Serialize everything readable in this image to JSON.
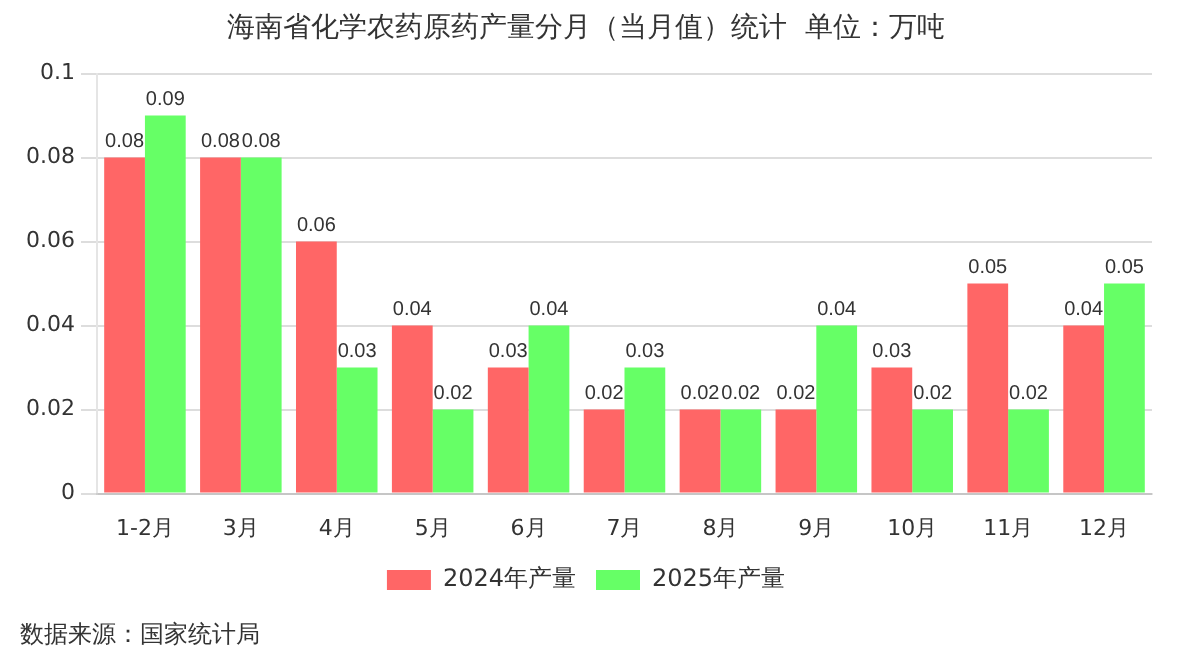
{
  "chart_data": {
    "type": "bar",
    "title": "海南省化学农药原药产量分月（当月值）统计  单位：万吨",
    "categories": [
      "1-2月",
      "3月",
      "4月",
      "5月",
      "6月",
      "7月",
      "8月",
      "9月",
      "10月",
      "11月",
      "12月"
    ],
    "series": [
      {
        "name": "2024年产量",
        "color": "#ff6666",
        "values": [
          0.08,
          0.08,
          0.06,
          0.04,
          0.03,
          0.02,
          0.02,
          0.02,
          0.03,
          0.05,
          0.04
        ]
      },
      {
        "name": "2025年产量",
        "color": "#66ff66",
        "values": [
          0.09,
          0.08,
          0.03,
          0.02,
          0.04,
          0.03,
          0.02,
          0.04,
          0.02,
          0.02,
          0.05
        ]
      }
    ],
    "ylim": [
      0,
      0.1
    ],
    "yticks": [
      0,
      0.02,
      0.04,
      0.06,
      0.08,
      0.1
    ],
    "grid": "y",
    "legend": "bottom",
    "data_labels": true,
    "annotations": [
      "数据来源：国家统计局"
    ]
  }
}
